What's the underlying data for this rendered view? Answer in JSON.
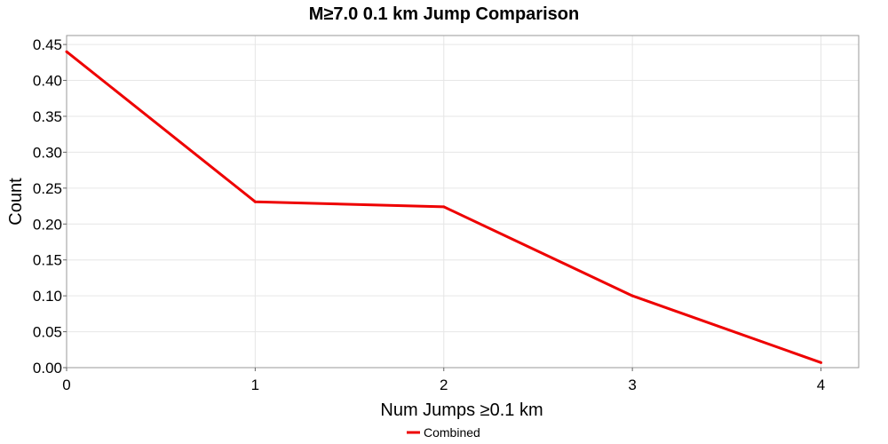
{
  "chart_data": {
    "type": "line",
    "title": "M≥7.0 0.1 km Jump Comparison",
    "xlabel": "Num Jumps ≥0.1 km",
    "ylabel": "Count",
    "xlim": [
      0,
      4.2
    ],
    "ylim": [
      0,
      0.4625
    ],
    "x_ticks": [
      0,
      1,
      2,
      3,
      4
    ],
    "x_tick_labels": [
      "0",
      "1",
      "2",
      "3",
      "4"
    ],
    "y_ticks": [
      0,
      0.05,
      0.1,
      0.15,
      0.2,
      0.25,
      0.3,
      0.35,
      0.4,
      0.45
    ],
    "y_tick_labels": [
      "0.00",
      "0.05",
      "0.10",
      "0.15",
      "0.20",
      "0.25",
      "0.30",
      "0.35",
      "0.40",
      "0.45"
    ],
    "grid": true,
    "legend_position": "bottom-center",
    "series": [
      {
        "name": "Combined",
        "color": "#ee0000",
        "x": [
          0,
          1,
          2,
          3,
          4
        ],
        "y": [
          0.44,
          0.231,
          0.224,
          0.1,
          0.007
        ]
      }
    ]
  }
}
